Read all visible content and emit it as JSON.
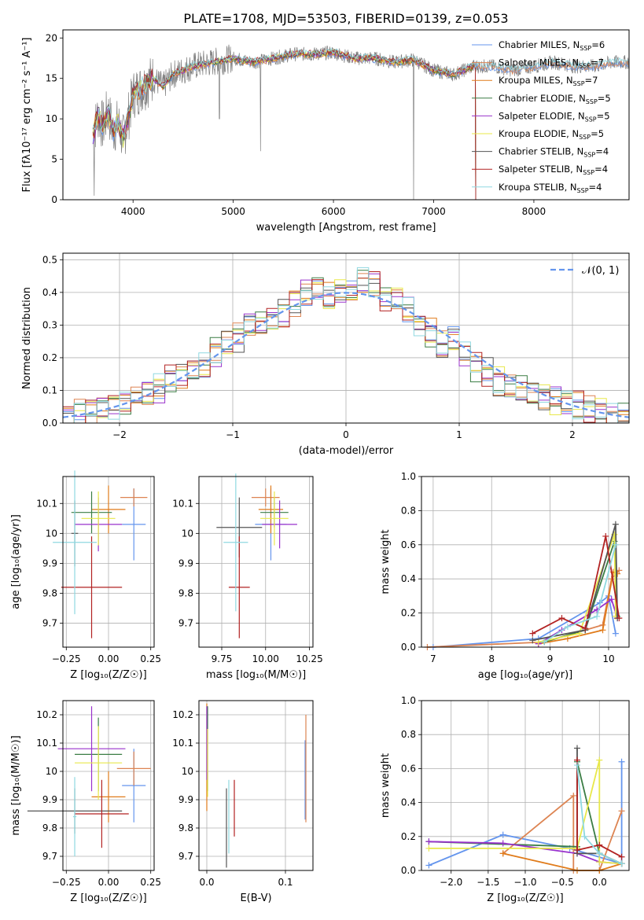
{
  "colors": [
    "#6495ed",
    "#dd8452",
    "#e07b1a",
    "#3a7d44",
    "#9932cc",
    "#e8e84a",
    "#555555",
    "#b22222",
    "#8fd8e0"
  ],
  "chart_data": [
    {
      "id": "spectrum",
      "type": "line",
      "title": "PLATE=1708, MJD=53503, FIBERID=0139, z=0.053",
      "xlabel": "wavelength [Angstrom, rest frame]",
      "ylabel": "Flux [fλ10⁻¹⁷ erg cm⁻² s⁻¹ A⁻¹]",
      "xlim": [
        3300,
        8950
      ],
      "ylim": [
        0,
        21
      ],
      "xticks": [
        4000,
        5000,
        6000,
        7000,
        8000
      ],
      "yticks": [
        0,
        5,
        10,
        15,
        20
      ],
      "data_x": [
        3600,
        3650,
        3700,
        3750,
        3800,
        3850,
        3900,
        3950,
        4000,
        4100,
        4200,
        4300,
        4400,
        4500,
        4600,
        4800,
        5000,
        5200,
        5400,
        5600,
        5800,
        6000,
        6200,
        6400,
        6600,
        6800,
        7000,
        7200,
        7400,
        7600,
        7800,
        8000,
        8200,
        8400,
        8600,
        8800
      ],
      "data_y": [
        8.0,
        10.5,
        9.0,
        11.0,
        8.5,
        9.5,
        7.5,
        10.0,
        13.0,
        14.0,
        15.0,
        14.0,
        15.5,
        16.0,
        16.5,
        17.0,
        17.5,
        17.0,
        17.5,
        18.0,
        18.0,
        18.2,
        17.5,
        17.5,
        17.0,
        17.3,
        16.0,
        15.5,
        16.5,
        16.5,
        16.0,
        16.5,
        17.0,
        16.5,
        16.5,
        17.0
      ],
      "legend": [
        {
          "label": "Chabrier MILES, N",
          "sub": "SSP",
          "suffix": "=6"
        },
        {
          "label": "Salpeter MILES, N",
          "sub": "SSP",
          "suffix": "=7"
        },
        {
          "label": "Kroupa MILES, N",
          "sub": "SSP",
          "suffix": "=7"
        },
        {
          "label": "Chabrier ELODIE, N",
          "sub": "SSP",
          "suffix": "=5"
        },
        {
          "label": "Salpeter ELODIE, N",
          "sub": "SSP",
          "suffix": "=5"
        },
        {
          "label": "Kroupa ELODIE, N",
          "sub": "SSP",
          "suffix": "=5"
        },
        {
          "label": "Chabrier STELIB, N",
          "sub": "SSP",
          "suffix": "=4"
        },
        {
          "label": "Salpeter STELIB, N",
          "sub": "SSP",
          "suffix": "=4"
        },
        {
          "label": "Kroupa STELIB, N",
          "sub": "SSP",
          "suffix": "=4"
        }
      ],
      "model_ends": [
        8950,
        8950,
        7420,
        7420,
        7420,
        7420,
        7420,
        7420,
        8950
      ]
    },
    {
      "id": "residuals",
      "type": "step-histogram",
      "xlabel": "(data-model)/error",
      "ylabel": "Normed distribution",
      "xlim": [
        -2.5,
        2.5
      ],
      "ylim": [
        0,
        0.52
      ],
      "xticks": [
        -2,
        -1,
        0,
        1,
        2
      ],
      "xtick_labels": [
        "−2",
        "−1",
        "0",
        "1",
        "2"
      ],
      "yticks": [
        0.0,
        0.1,
        0.2,
        0.3,
        0.4,
        0.5
      ],
      "ytick_labels": [
        "0.0",
        "0.1",
        "0.2",
        "0.3",
        "0.4",
        "0.5"
      ],
      "legend_label": "𝒩(0, 1)",
      "bin_centers": [
        -2.45,
        -2.35,
        -2.25,
        -2.15,
        -2.05,
        -1.95,
        -1.85,
        -1.75,
        -1.65,
        -1.55,
        -1.45,
        -1.35,
        -1.25,
        -1.15,
        -1.05,
        -0.95,
        -0.85,
        -0.75,
        -0.65,
        -0.55,
        -0.45,
        -0.35,
        -0.25,
        -0.15,
        -0.05,
        0.05,
        0.15,
        0.25,
        0.35,
        0.45,
        0.55,
        0.65,
        0.75,
        0.85,
        0.95,
        1.05,
        1.15,
        1.25,
        1.35,
        1.45,
        1.55,
        1.65,
        1.75,
        1.85,
        1.95,
        2.05,
        2.15,
        2.25,
        2.35,
        2.45
      ],
      "mean_heights": [
        0.015,
        0.03,
        0.04,
        0.05,
        0.05,
        0.06,
        0.08,
        0.09,
        0.1,
        0.14,
        0.15,
        0.16,
        0.17,
        0.21,
        0.24,
        0.26,
        0.29,
        0.3,
        0.31,
        0.33,
        0.37,
        0.39,
        0.41,
        0.38,
        0.4,
        0.4,
        0.43,
        0.42,
        0.38,
        0.37,
        0.34,
        0.3,
        0.27,
        0.23,
        0.26,
        0.22,
        0.17,
        0.15,
        0.12,
        0.11,
        0.1,
        0.08,
        0.08,
        0.07,
        0.06,
        0.05,
        0.04,
        0.03,
        0.02,
        0.015
      ]
    },
    {
      "id": "z-vs-age",
      "type": "scatter-errorbar",
      "xlabel": "Z [log₁₀(Z/Z☉)]",
      "ylabel": "age  [log₁₀(age/yr)]",
      "xlim": [
        -0.27,
        0.27
      ],
      "ylim": [
        9.62,
        10.19
      ],
      "xticks": [
        -0.25,
        0.0,
        0.25
      ],
      "xtick_labels": [
        "−0.25",
        "0.00",
        "0.25"
      ],
      "yticks": [
        9.7,
        9.8,
        9.9,
        10.0,
        10.1
      ],
      "points": [
        {
          "x": 0.15,
          "y": 10.03,
          "xerr": 0.07,
          "yerr": 0.12
        },
        {
          "x": 0.15,
          "y": 10.12,
          "xerr": 0.08,
          "yerr": 0.03
        },
        {
          "x": 0.0,
          "y": 10.08,
          "xerr": 0.1,
          "yerr": 0.08
        },
        {
          "x": -0.1,
          "y": 10.07,
          "xerr": 0.12,
          "yerr": 0.07
        },
        {
          "x": -0.06,
          "y": 10.03,
          "xerr": 0.14,
          "yerr": 0.09
        },
        {
          "x": -0.06,
          "y": 10.05,
          "xerr": 0.1,
          "yerr": 0.09
        },
        {
          "x": -0.2,
          "y": 10.0,
          "xerr": 0.02,
          "yerr": 0.11
        },
        {
          "x": -0.1,
          "y": 9.82,
          "xerr": 0.18,
          "yerr": 0.17
        },
        {
          "x": -0.2,
          "y": 9.97,
          "xerr": 0.13,
          "yerr": 0.24
        }
      ]
    },
    {
      "id": "mass-vs-age",
      "type": "scatter-errorbar",
      "xlabel": "mass [log₁₀(M/M☉)]",
      "ylabel": "",
      "xlim": [
        9.62,
        10.27
      ],
      "ylim": [
        9.62,
        10.19
      ],
      "xticks": [
        9.75,
        10.0,
        10.25
      ],
      "xtick_labels": [
        "9.75",
        "10.00",
        "10.25"
      ],
      "yticks": [
        9.7,
        9.8,
        9.9,
        10.0,
        10.1
      ],
      "points": [
        {
          "x": 10.03,
          "y": 10.03,
          "xerr": 0.09,
          "yerr": 0.12
        },
        {
          "x": 10.0,
          "y": 10.12,
          "xerr": 0.08,
          "yerr": 0.03
        },
        {
          "x": 10.03,
          "y": 10.08,
          "xerr": 0.07,
          "yerr": 0.08
        },
        {
          "x": 10.05,
          "y": 10.07,
          "xerr": 0.08,
          "yerr": 0.05
        },
        {
          "x": 10.08,
          "y": 10.03,
          "xerr": 0.1,
          "yerr": 0.08
        },
        {
          "x": 10.05,
          "y": 10.05,
          "xerr": 0.08,
          "yerr": 0.09
        },
        {
          "x": 9.85,
          "y": 10.02,
          "xerr": 0.13,
          "yerr": 0.1
        },
        {
          "x": 9.85,
          "y": 9.82,
          "xerr": 0.06,
          "yerr": 0.17
        },
        {
          "x": 9.83,
          "y": 9.97,
          "xerr": 0.07,
          "yerr": 0.23
        }
      ]
    },
    {
      "id": "age-vs-weight",
      "type": "line",
      "xlabel": "age  [log₁₀(age/yr)]",
      "ylabel": "mass weight",
      "xlim": [
        6.8,
        10.35
      ],
      "ylim": [
        0,
        1
      ],
      "xticks": [
        7,
        8,
        9,
        10
      ],
      "yticks": [
        0.0,
        0.2,
        0.4,
        0.6,
        0.8,
        1.0
      ],
      "ytick_labels": [
        "0.0",
        "0.2",
        "0.4",
        "0.6",
        "0.8",
        "1.0"
      ],
      "series": [
        {
          "x": [
            7.0,
            8.8,
            9.85,
            10.0,
            10.12
          ],
          "y": [
            0.0,
            0.05,
            0.26,
            0.3,
            0.08
          ]
        },
        {
          "x": [
            6.9,
            8.9,
            9.9,
            10.05,
            10.18
          ],
          "y": [
            0.0,
            0.03,
            0.13,
            0.4,
            0.45
          ]
        },
        {
          "x": [
            8.8,
            9.3,
            9.9,
            10.08,
            10.15
          ],
          "y": [
            0.02,
            0.05,
            0.1,
            0.44,
            0.43
          ]
        },
        {
          "x": [
            8.9,
            9.6,
            10.1,
            10.15
          ],
          "y": [
            0.03,
            0.1,
            0.62,
            0.18
          ]
        },
        {
          "x": [
            8.8,
            9.2,
            9.8,
            10.05,
            10.15
          ],
          "y": [
            0.02,
            0.1,
            0.22,
            0.28,
            0.17
          ]
        },
        {
          "x": [
            8.8,
            9.5,
            10.1,
            10.12
          ],
          "y": [
            0.03,
            0.08,
            0.66,
            0.18
          ]
        },
        {
          "x": [
            8.7,
            9.6,
            10.12,
            10.15
          ],
          "y": [
            0.04,
            0.1,
            0.72,
            0.17
          ]
        },
        {
          "x": [
            8.7,
            9.2,
            9.6,
            9.95,
            10.18
          ],
          "y": [
            0.08,
            0.17,
            0.11,
            0.65,
            0.17
          ]
        },
        {
          "x": [
            8.9,
            9.3,
            9.8,
            10.12
          ],
          "y": [
            0.03,
            0.12,
            0.18,
            0.6
          ]
        }
      ]
    },
    {
      "id": "z-vs-mass",
      "type": "scatter-errorbar",
      "xlabel": "Z [log₁₀(Z/Z☉)]",
      "ylabel": "mass [log₁₀(M/M☉)]",
      "xlim": [
        -0.27,
        0.27
      ],
      "ylim": [
        9.65,
        10.25
      ],
      "xticks": [
        -0.25,
        0.0,
        0.25
      ],
      "xtick_labels": [
        "−0.25",
        "0.00",
        "0.25"
      ],
      "yticks": [
        9.7,
        9.8,
        9.9,
        10.0,
        10.1,
        10.2
      ],
      "points": [
        {
          "x": 0.15,
          "y": 9.95,
          "xerr": 0.07,
          "yerr": 0.13
        },
        {
          "x": 0.15,
          "y": 10.01,
          "xerr": 0.1,
          "yerr": 0.06
        },
        {
          "x": 0.0,
          "y": 9.91,
          "xerr": 0.1,
          "yerr": 0.09
        },
        {
          "x": -0.06,
          "y": 10.06,
          "xerr": 0.14,
          "yerr": 0.13
        },
        {
          "x": -0.1,
          "y": 10.08,
          "xerr": 0.2,
          "yerr": 0.15
        },
        {
          "x": -0.06,
          "y": 10.03,
          "xerr": 0.14,
          "yerr": 0.13
        },
        {
          "x": -0.2,
          "y": 9.86,
          "xerr": 0.28,
          "yerr": 0.08
        },
        {
          "x": -0.04,
          "y": 9.85,
          "xerr": 0.16,
          "yerr": 0.12
        },
        {
          "x": -0.2,
          "y": 9.84,
          "xerr": 0.01,
          "yerr": 0.14
        }
      ]
    },
    {
      "id": "ebv-vs-mass",
      "type": "scatter-errorbar",
      "xlabel": "E(B-V)",
      "ylabel": "",
      "xlim": [
        -0.01,
        0.135
      ],
      "ylim": [
        9.65,
        10.25
      ],
      "xticks": [
        0.0,
        0.1
      ],
      "xtick_labels": [
        "0.0",
        "0.1"
      ],
      "yticks": [
        9.7,
        9.8,
        9.9,
        10.0,
        10.1,
        10.2
      ],
      "points": [
        {
          "x": 0.125,
          "y": 9.97,
          "xerr": 0.0,
          "yerr": 0.14
        },
        {
          "x": 0.126,
          "y": 10.01,
          "xerr": 0.0,
          "yerr": 0.19
        },
        {
          "x": 0.0,
          "y": 10.05,
          "xerr": 0.0,
          "yerr": 0.19
        },
        {
          "x": 0.001,
          "y": 10.08,
          "xerr": 0.0,
          "yerr": 0.15
        },
        {
          "x": 0.0,
          "y": 10.1,
          "xerr": 0.0,
          "yerr": 0.13
        },
        {
          "x": 0.001,
          "y": 10.03,
          "xerr": 0.0,
          "yerr": 0.12
        },
        {
          "x": 0.025,
          "y": 9.8,
          "xerr": 0.0,
          "yerr": 0.14
        },
        {
          "x": 0.035,
          "y": 9.87,
          "xerr": 0.0,
          "yerr": 0.1
        },
        {
          "x": 0.028,
          "y": 9.84,
          "xerr": 0.0,
          "yerr": 0.13
        }
      ]
    },
    {
      "id": "z-vs-weight",
      "type": "line",
      "xlabel": "Z [log₁₀(Z/Z☉)]",
      "ylabel": "mass weight",
      "xlim": [
        -2.4,
        0.4
      ],
      "ylim": [
        0,
        1
      ],
      "xticks": [
        -2.0,
        -1.5,
        -1.0,
        -0.5,
        0.0
      ],
      "xtick_labels": [
        "−2.0",
        "−1.5",
        "−1.0",
        "−0.5",
        "0.0"
      ],
      "yticks": [
        0.0,
        0.2,
        0.4,
        0.6,
        0.8,
        1.0
      ],
      "ytick_labels": [
        "0.0",
        "0.2",
        "0.4",
        "0.6",
        "0.8",
        "1.0"
      ],
      "series": [
        {
          "x": [
            -2.3,
            -1.3,
            -0.4,
            0.3,
            0.3
          ],
          "y": [
            0.03,
            0.21,
            0.13,
            0.04,
            0.64
          ]
        },
        {
          "x": [
            -1.3,
            -0.35,
            -0.35,
            0.0,
            0.3
          ],
          "y": [
            0.1,
            0.44,
            0.0,
            0.0,
            0.35
          ]
        },
        {
          "x": [
            -1.3,
            -0.3,
            0.0,
            0.3
          ],
          "y": [
            0.1,
            0.0,
            0.0,
            0.04
          ]
        },
        {
          "x": [
            -2.3,
            -0.3,
            -0.3,
            0.0,
            0.3
          ],
          "y": [
            0.17,
            0.14,
            0.64,
            0.1,
            0.04
          ]
        },
        {
          "x": [
            -2.3,
            -1.3,
            -0.3,
            0.0,
            0.3
          ],
          "y": [
            0.17,
            0.16,
            0.1,
            0.05,
            0.04
          ]
        },
        {
          "x": [
            -2.3,
            -0.3,
            0.0,
            0.0,
            0.3
          ],
          "y": [
            0.13,
            0.13,
            0.65,
            0.05,
            0.04
          ]
        },
        {
          "x": [
            -0.3,
            -0.3,
            0.0,
            0.3
          ],
          "y": [
            0.72,
            0.1,
            0.1,
            0.04
          ]
        },
        {
          "x": [
            -0.3,
            -0.3,
            0.0,
            0.3
          ],
          "y": [
            0.65,
            0.12,
            0.15,
            0.08
          ]
        },
        {
          "x": [
            -0.3,
            -0.2,
            0.0,
            0.3
          ],
          "y": [
            0.62,
            0.2,
            0.1,
            0.04
          ]
        }
      ]
    }
  ]
}
